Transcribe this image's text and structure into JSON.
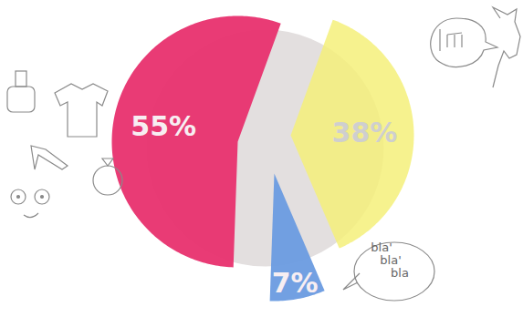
{
  "chart_data": {
    "type": "pie",
    "values": [
      55,
      38,
      7
    ],
    "value_labels": [
      "55%",
      "38%",
      "7%"
    ],
    "colors": [
      "#e8306e",
      "#f5f07a",
      "#6a9be0"
    ],
    "data_labels": true,
    "annotations": [
      "bla'",
      "bla'",
      "bla"
    ]
  }
}
